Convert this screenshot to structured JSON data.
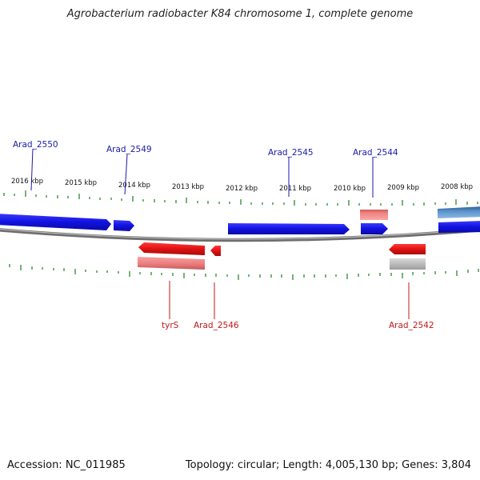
{
  "title": "Agrobacterium radiobacter K84 chromosome 1, complete genome",
  "accession": "Accession: NC_011985",
  "summary": "Topology: circular; Length: 4,005,130 bp; Genes: 3,804",
  "colors": {
    "forward_gene": "#1515e6",
    "reverse_gene": "#e61515",
    "reverse_cds": "#ee8888",
    "forward_cds": "#ee7777",
    "pseudo": "#bdbdbd",
    "steel_gene": "#4f86c0",
    "backbone": "#8a8a8a",
    "tick": "#2d8a2d",
    "label_blue": "#1a1aa8",
    "label_red": "#c01818"
  },
  "kbp_labels": [
    "2016 kbp",
    "2015 kbp",
    "2014 kbp",
    "2013 kbp",
    "2012 kbp",
    "2011 kbp",
    "2010 kbp",
    "2009 kbp",
    "2008 kbp"
  ],
  "gene_labels_top": [
    "Arad_2550",
    "Arad_2549",
    "Arad_2545",
    "Arad_2544"
  ],
  "gene_labels_bottom": [
    "tyrS",
    "Arad_2546",
    "Arad_2542"
  ]
}
